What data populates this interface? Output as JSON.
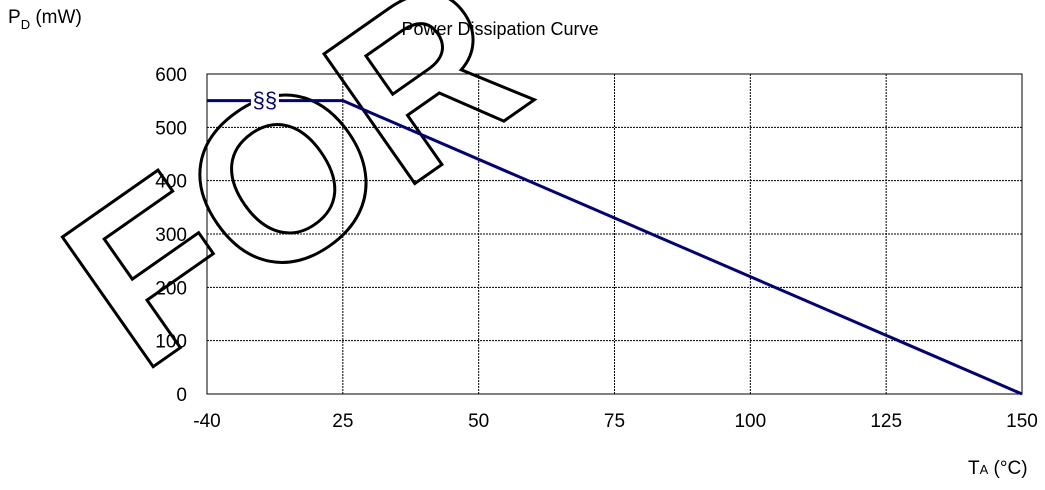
{
  "watermark": "FOR",
  "colors": {
    "line": "#000080",
    "grid": "#000000",
    "frame": "#000000"
  },
  "chart_data": {
    "type": "line",
    "title": "Power Dissipation Curve",
    "ylabel": {
      "main": "P",
      "sub": "D",
      "unit": " (mW)"
    },
    "xlabel": {
      "main": "T",
      "sub": "A",
      "unit": " (°C)"
    },
    "x_categories": [
      "-40",
      "25",
      "50",
      "75",
      "100",
      "125",
      "150"
    ],
    "y_ticks": [
      0,
      100,
      200,
      300,
      400,
      500,
      600
    ],
    "ylim": [
      0,
      600
    ],
    "grid": true,
    "axis_break": {
      "between": [
        "-40",
        "25"
      ],
      "symbol": "§§"
    },
    "series": [
      {
        "points": [
          [
            "-40",
            550
          ],
          [
            "25",
            550
          ],
          [
            "150",
            0
          ]
        ]
      }
    ]
  }
}
